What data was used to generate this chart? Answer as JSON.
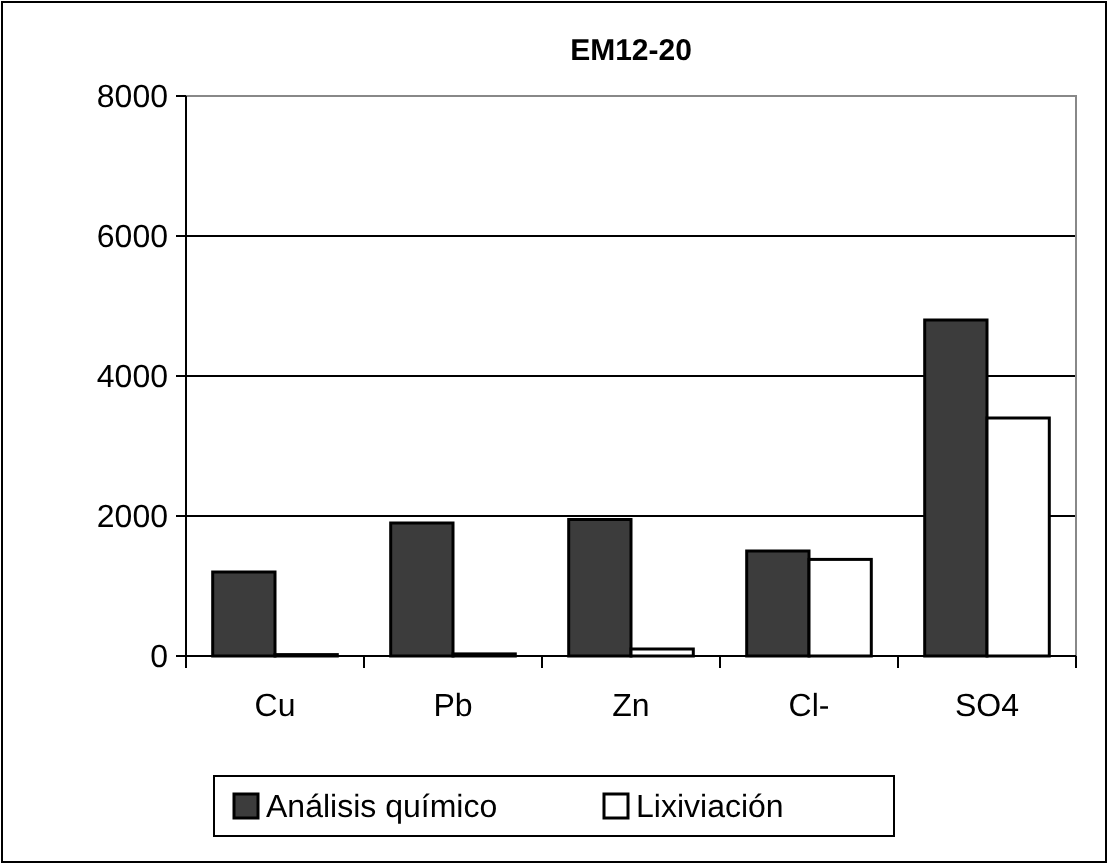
{
  "chart_data": {
    "type": "bar",
    "title": "EM12-20",
    "categories": [
      "Cu",
      "Pb",
      "Zn",
      "Cl-",
      "SO4"
    ],
    "series": [
      {
        "name": "Análisis químico",
        "color": "#3c3c3c",
        "values": [
          1200,
          1900,
          1950,
          1500,
          4800
        ]
      },
      {
        "name": "Lixiviación",
        "color": "#ffffff",
        "values": [
          20,
          30,
          100,
          1380,
          3400
        ]
      }
    ],
    "ylim": [
      0,
      8000
    ],
    "yticks": [
      0,
      2000,
      4000,
      6000,
      8000
    ],
    "grid": "y",
    "legend": "bottom"
  }
}
